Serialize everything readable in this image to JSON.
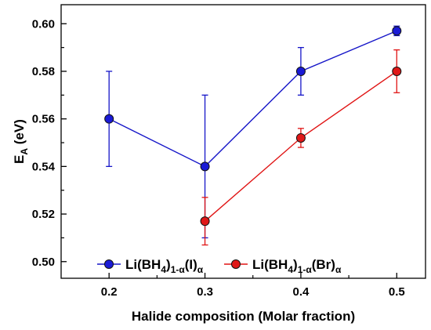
{
  "chart_data": {
    "type": "scatter",
    "xlabel": "Halide composition (Molar fraction)",
    "ylabel": {
      "main": "E",
      "sub": "A",
      "suffix": " (eV)"
    },
    "xlim": [
      0.15,
      0.53
    ],
    "ylim": [
      0.493,
      0.608
    ],
    "xticks": [
      0.2,
      0.3,
      0.4,
      0.5
    ],
    "xtick_labels": [
      "0.2",
      "0.3",
      "0.4",
      "0.5"
    ],
    "yticks": [
      0.5,
      0.52,
      0.54,
      0.56,
      0.58,
      0.6
    ],
    "ytick_labels": [
      "0.50",
      "0.52",
      "0.54",
      "0.56",
      "0.58",
      "0.60"
    ],
    "grid": false,
    "legend_position": "bottom",
    "series": [
      {
        "name": "Li(BH4)1-α(I)α",
        "name_parts": [
          "Li(BH",
          "4",
          ")",
          "1-α",
          "(I)",
          "α"
        ],
        "color": "#1515c8",
        "fill": "#1a1ad6",
        "x": [
          0.2,
          0.3,
          0.4,
          0.5
        ],
        "y": [
          0.56,
          0.54,
          0.58,
          0.597
        ],
        "yerr": [
          0.02,
          0.03,
          0.01,
          0.002
        ]
      },
      {
        "name": "Li(BH4)1-α(Br)α",
        "name_parts": [
          "Li(BH",
          "4",
          ")",
          "1-α",
          "(Br)",
          "α"
        ],
        "color": "#e01414",
        "fill": "#e01818",
        "x": [
          0.3,
          0.4,
          0.5
        ],
        "y": [
          0.517,
          0.552,
          0.58
        ],
        "yerr": [
          0.01,
          0.004,
          0.009
        ]
      }
    ]
  }
}
